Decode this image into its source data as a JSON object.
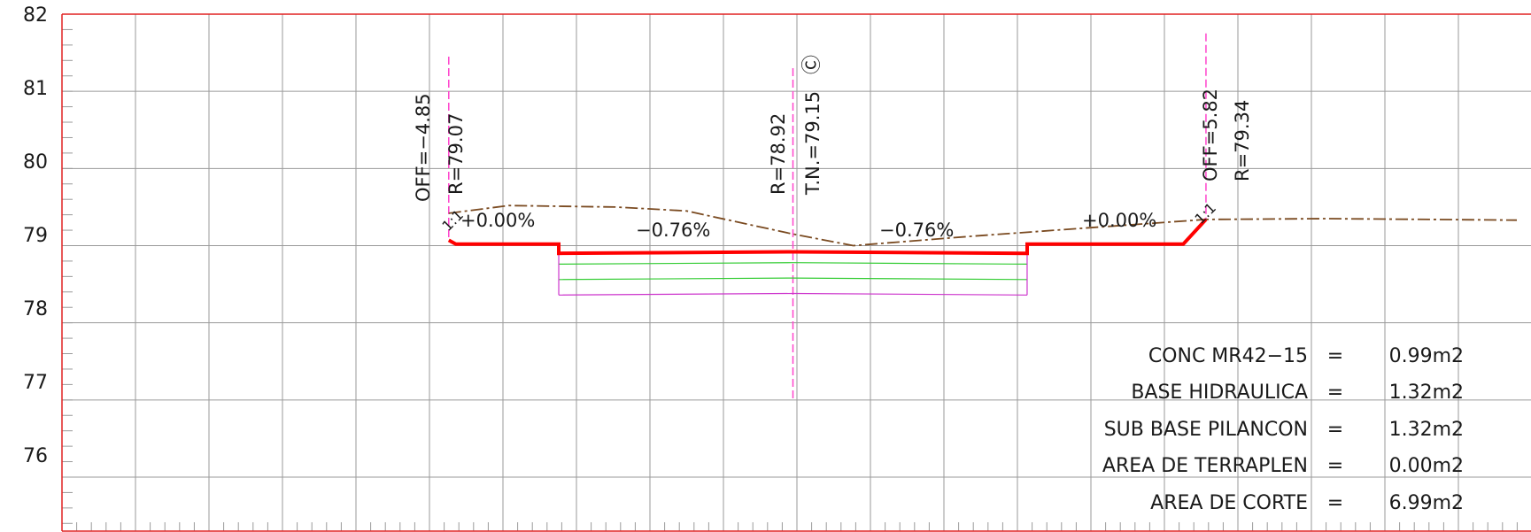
{
  "y_axis": {
    "min": 75.3,
    "max": 82,
    "ticks": [
      "82",
      "81",
      "80",
      "79",
      "78",
      "77",
      "76"
    ]
  },
  "x_axis": {
    "offset_min": -10.3,
    "offset_max": 10.4
  },
  "colors": {
    "grid": "#9a9a9a",
    "frame": "#e02020",
    "subgrade": "#ff0000",
    "ground": "#7a4a20",
    "layers": "#33cc33",
    "bottom_layer": "#cc33cc",
    "offset_line": "#ff44cc",
    "text": "#1a1a1a"
  },
  "labels": {
    "left_offset": "OFF=−4.85",
    "left_elev": "R=79.07",
    "center_elev": "R=78.92",
    "center_tn": "T.N.=79.15",
    "center_mark": "Ⓒ",
    "right_offset": "OFF=5.82",
    "right_elev": "R=79.34",
    "left_slope": "+0.00%",
    "left_lane_slope": "−0.76%",
    "right_lane_slope": "−0.76%",
    "right_slope": "+0.00%",
    "left_ratio": "1:1",
    "right_ratio": "1:1"
  },
  "quantities": [
    {
      "name": "CONC MR42−15",
      "value": "0.99m2"
    },
    {
      "name": "BASE HIDRAULICA",
      "value": "1.32m2"
    },
    {
      "name": "SUB BASE PILANCON",
      "value": "1.32m2"
    },
    {
      "name": "AREA DE TERRAPLEN",
      "value": "0.00m2"
    },
    {
      "name": "AREA DE CORTE",
      "value": "6.99m2"
    }
  ],
  "profiles": {
    "ground": [
      [
        -4.85,
        79.42
      ],
      [
        -4.0,
        79.52
      ],
      [
        -2.5,
        79.5
      ],
      [
        -1.5,
        79.45
      ],
      [
        0.0,
        79.15
      ],
      [
        0.85,
        79.0
      ],
      [
        2.5,
        79.12
      ],
      [
        4.0,
        79.22
      ],
      [
        5.82,
        79.34
      ],
      [
        7.5,
        79.35
      ],
      [
        9.0,
        79.34
      ],
      [
        10.2,
        79.33
      ]
    ],
    "subgrade": [
      [
        -4.85,
        79.07
      ],
      [
        -4.75,
        79.02
      ],
      [
        -3.3,
        79.02
      ],
      [
        -3.3,
        78.9
      ],
      [
        0.0,
        78.92
      ],
      [
        3.3,
        78.9
      ],
      [
        3.3,
        79.02
      ],
      [
        5.5,
        79.02
      ],
      [
        5.82,
        79.34
      ]
    ],
    "layer1": [
      [
        -3.3,
        78.76
      ],
      [
        0.0,
        78.78
      ],
      [
        3.3,
        78.76
      ]
    ],
    "layer2": [
      [
        -3.3,
        78.56
      ],
      [
        0.0,
        78.58
      ],
      [
        3.3,
        78.56
      ]
    ],
    "layer3": [
      [
        -3.3,
        78.36
      ],
      [
        0.0,
        78.38
      ],
      [
        3.3,
        78.36
      ]
    ],
    "offset_lines": [
      {
        "x": -4.85,
        "y_top": 81.45,
        "y_bottom": 79.07
      },
      {
        "x": 0.0,
        "y_top": 81.3,
        "y_bottom": 77.0
      },
      {
        "x": 5.82,
        "y_top": 81.75,
        "y_bottom": 79.34
      }
    ]
  }
}
